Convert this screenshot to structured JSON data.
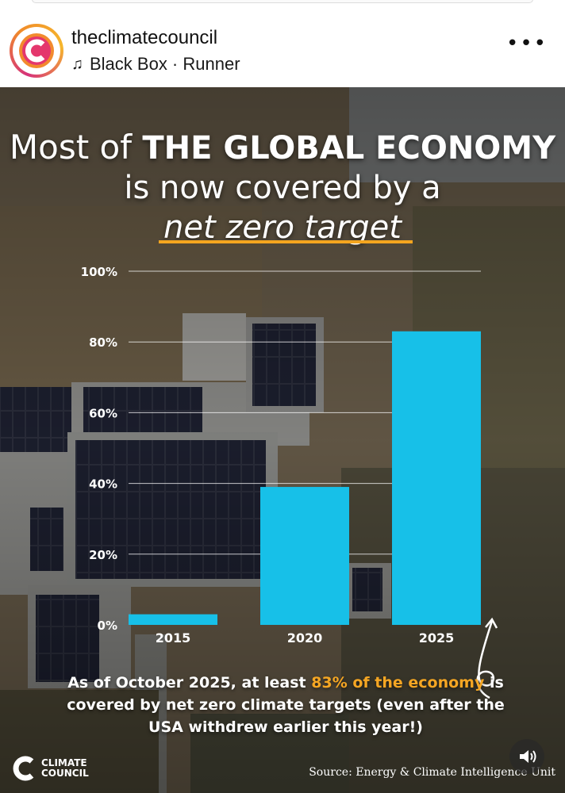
{
  "post": {
    "username": "theclimatecouncil",
    "audio": "Black Box · Runner",
    "more": "•••"
  },
  "image": {
    "title": {
      "prefix": "Most of ",
      "bold": "THE GLOBAL ECONOMY",
      "line2": "is now covered by a",
      "line3": "net zero target"
    },
    "caption": {
      "part1": "As of October 2025, at least ",
      "highlight": "83% of the economy",
      "part2": " is covered by net zero climate targets (even after the USA withdrew earlier this year!)"
    },
    "brand_line1": "CLIMATE",
    "brand_line2": "COUNCIL",
    "source": "Source: Energy & Climate Intelligence Unit"
  },
  "colors": {
    "bar": "#17c0e8",
    "highlight": "#f5a623",
    "underline": "#f4a51f"
  },
  "chart_data": {
    "type": "bar",
    "categories": [
      "2015",
      "2020",
      "2025"
    ],
    "values": [
      3,
      39,
      83
    ],
    "ylim": [
      0,
      100
    ],
    "yticks": [
      "0%",
      "20%",
      "40%",
      "60%",
      "80%",
      "100%"
    ],
    "ytick_values": [
      0,
      20,
      40,
      60,
      80,
      100
    ],
    "grid": true
  }
}
